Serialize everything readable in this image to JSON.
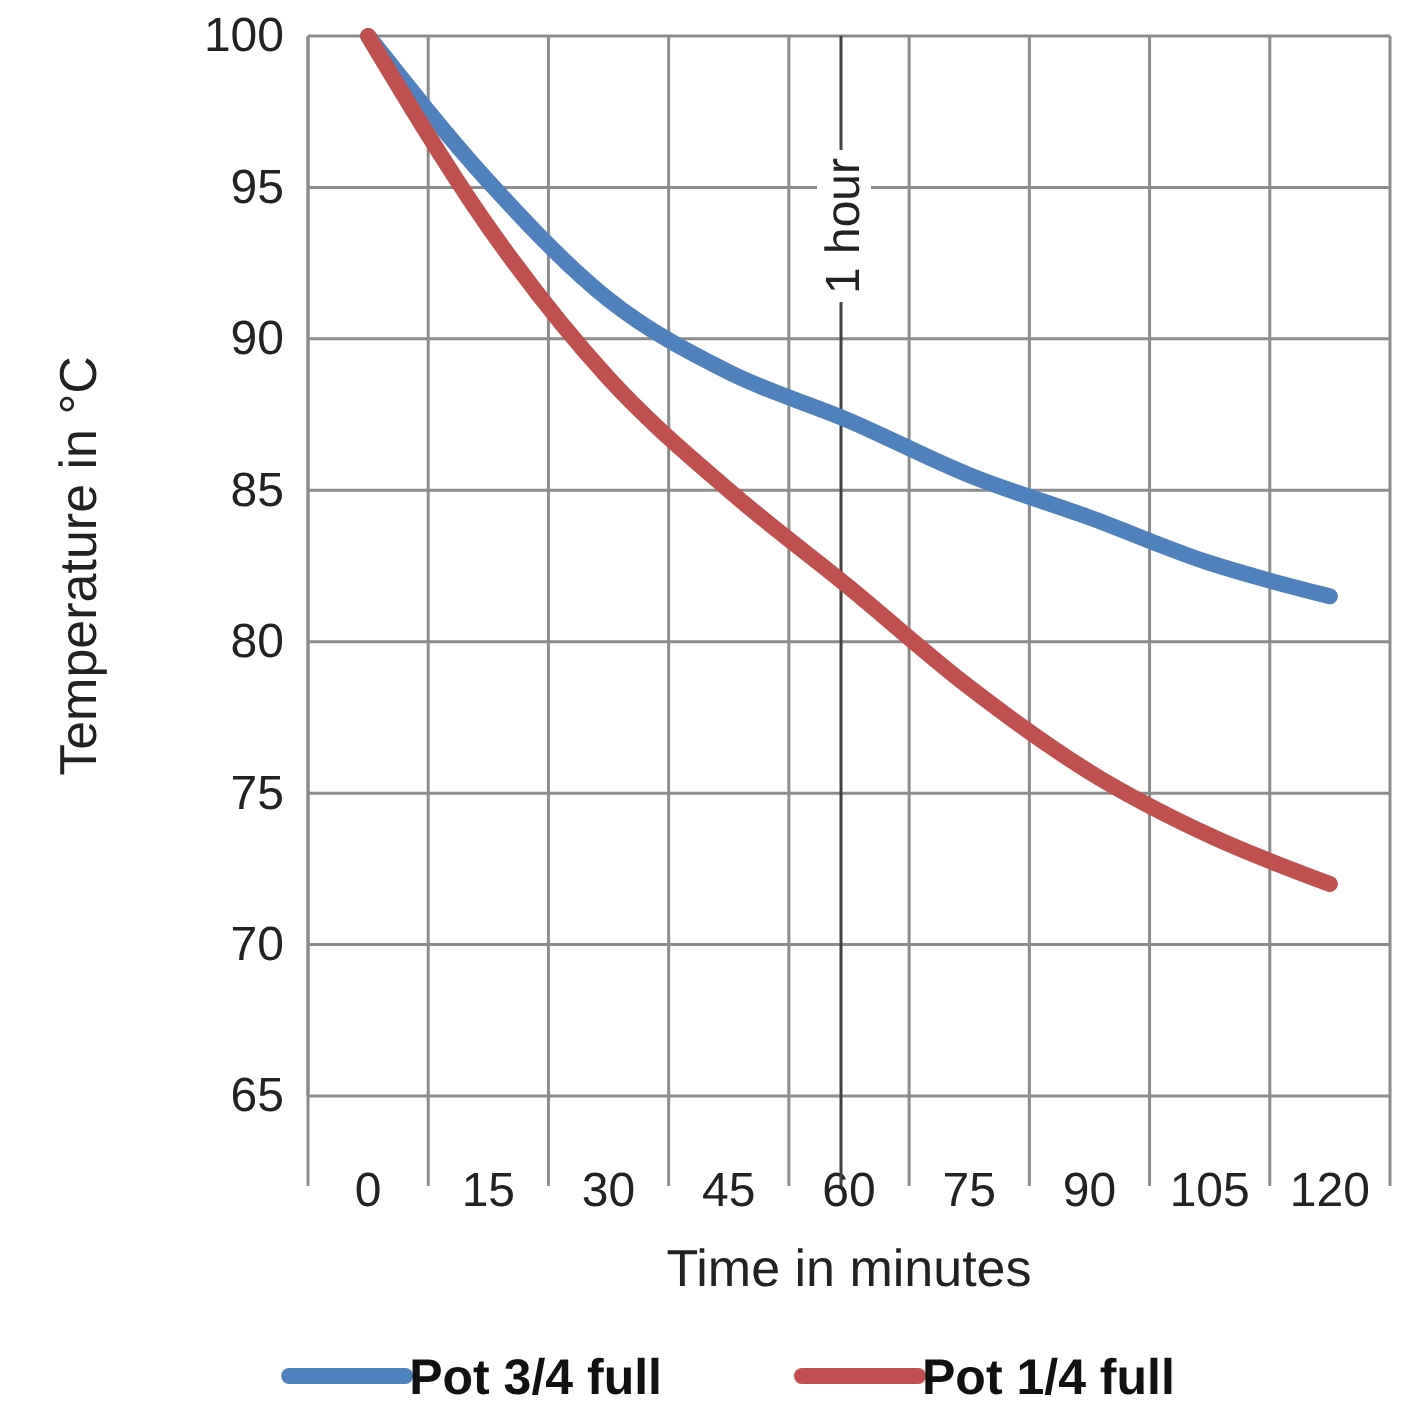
{
  "chart_data": {
    "type": "line",
    "xlabel": "Time in minutes",
    "ylabel": "Temperature in °C",
    "categories": [
      "0",
      "15",
      "30",
      "45",
      "60",
      "75",
      "90",
      "105",
      "120"
    ],
    "series": [
      {
        "name": "Pot 3/4 full",
        "color": "#4f81bd",
        "values": [
          100,
          95.2,
          91.3,
          88.9,
          87.3,
          85.5,
          84.1,
          82.6,
          81.5
        ]
      },
      {
        "name": "Pot 1/4 full",
        "color": "#c0504d",
        "values": [
          100,
          93.7,
          88.7,
          85.0,
          81.8,
          78.5,
          75.7,
          73.6,
          72.0
        ]
      }
    ],
    "ylim": [
      65,
      100
    ],
    "yticks": [
      65,
      70,
      75,
      80,
      85,
      90,
      95,
      100
    ],
    "grid": true,
    "legend": "bottom",
    "marker": "none",
    "line_style": "solid",
    "ref_lines": [
      {
        "axis": "x",
        "value": "60",
        "label": "1 hour",
        "color": "#404040"
      }
    ]
  }
}
